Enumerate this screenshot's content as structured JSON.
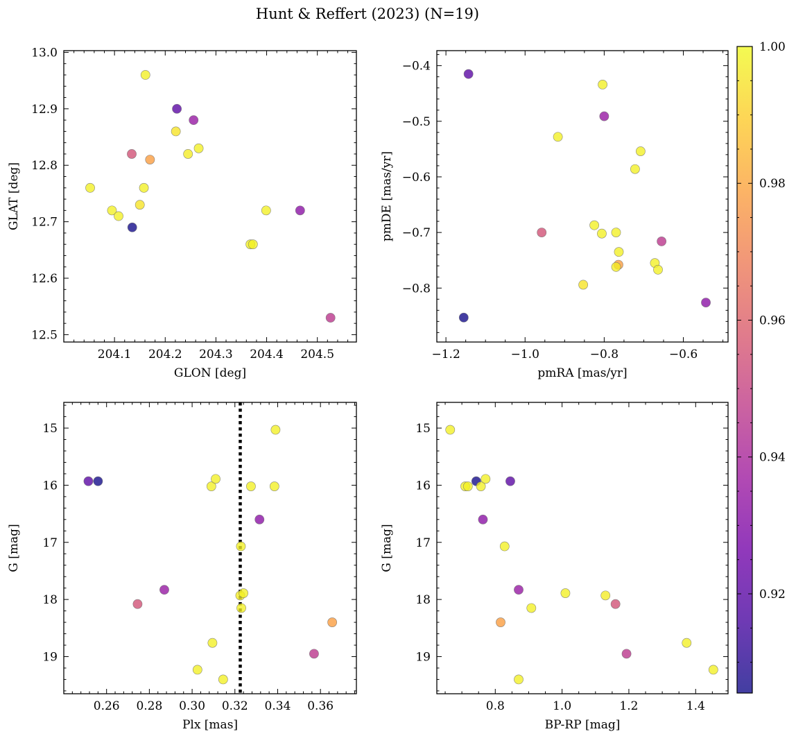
{
  "figure": {
    "title": "Hunt & Reffert (2023) (N=19)"
  },
  "chart_data": [
    {
      "type": "scatter",
      "xlabel": "GLON [deg]",
      "ylabel": "GLAT [deg]",
      "xlim": [
        204.0,
        204.577
      ],
      "ylim": [
        12.487,
        13.003
      ],
      "x_inverted": false,
      "y_inverted": false,
      "xticks": [
        204.1,
        204.2,
        204.3,
        204.4,
        204.5
      ],
      "xtick_labels": [
        "204.1",
        "204.2",
        "204.3",
        "204.4",
        "204.5"
      ],
      "yticks": [
        12.5,
        12.6,
        12.7,
        12.8,
        12.9,
        13.0
      ],
      "ytick_labels": [
        "12.5",
        "12.6",
        "12.7",
        "12.8",
        "12.9",
        "13.0"
      ],
      "points": [
        {
          "x": 204.052,
          "y": 12.76,
          "c": 0.998
        },
        {
          "x": 204.095,
          "y": 12.72,
          "c": 0.998
        },
        {
          "x": 204.108,
          "y": 12.71,
          "c": 0.998
        },
        {
          "x": 204.135,
          "y": 12.69,
          "c": 0.906
        },
        {
          "x": 204.134,
          "y": 12.82,
          "c": 0.955
        },
        {
          "x": 204.15,
          "y": 12.73,
          "c": 0.995
        },
        {
          "x": 204.158,
          "y": 12.76,
          "c": 0.998
        },
        {
          "x": 204.161,
          "y": 12.96,
          "c": 0.998
        },
        {
          "x": 204.17,
          "y": 12.81,
          "c": 0.978
        },
        {
          "x": 204.221,
          "y": 12.86,
          "c": 0.995
        },
        {
          "x": 204.223,
          "y": 12.9,
          "c": 0.92
        },
        {
          "x": 204.245,
          "y": 12.82,
          "c": 0.997
        },
        {
          "x": 204.256,
          "y": 12.88,
          "c": 0.935
        },
        {
          "x": 204.266,
          "y": 12.83,
          "c": 0.998
        },
        {
          "x": 204.368,
          "y": 12.66,
          "c": 0.998
        },
        {
          "x": 204.373,
          "y": 12.66,
          "c": 0.998
        },
        {
          "x": 204.399,
          "y": 12.72,
          "c": 0.998
        },
        {
          "x": 204.466,
          "y": 12.72,
          "c": 0.932
        },
        {
          "x": 204.526,
          "y": 12.53,
          "c": 0.946
        }
      ]
    },
    {
      "type": "scatter",
      "xlabel": "pmRA [mas/yr]",
      "ylabel": "pmDE [mas/yr]",
      "xlim": [
        -1.223,
        -0.487
      ],
      "ylim": [
        -0.897,
        -0.373
      ],
      "x_inverted": false,
      "y_inverted": false,
      "xticks": [
        -1.2,
        -1.0,
        -0.8,
        -0.6
      ],
      "xtick_labels": [
        "−1.2",
        "−1.0",
        "−0.8",
        "−0.6"
      ],
      "yticks": [
        -0.8,
        -0.7,
        -0.6,
        -0.5,
        -0.4
      ],
      "ytick_labels": [
        "−0.8",
        "−0.7",
        "−0.6",
        "−0.5",
        "−0.4"
      ],
      "points": [
        {
          "x": -1.155,
          "y": -0.853,
          "c": 0.906
        },
        {
          "x": -1.143,
          "y": -0.415,
          "c": 0.92
        },
        {
          "x": -0.958,
          "y": -0.7,
          "c": 0.955
        },
        {
          "x": -0.917,
          "y": -0.528,
          "c": 0.998
        },
        {
          "x": -0.853,
          "y": -0.794,
          "c": 0.995
        },
        {
          "x": -0.825,
          "y": -0.687,
          "c": 0.998
        },
        {
          "x": -0.806,
          "y": -0.702,
          "c": 0.998
        },
        {
          "x": -0.804,
          "y": -0.434,
          "c": 0.998
        },
        {
          "x": -0.8,
          "y": -0.491,
          "c": 0.935
        },
        {
          "x": -0.77,
          "y": -0.7,
          "c": 0.998
        },
        {
          "x": -0.77,
          "y": -0.762,
          "c": 0.997
        },
        {
          "x": -0.764,
          "y": -0.758,
          "c": 0.978
        },
        {
          "x": -0.763,
          "y": -0.735,
          "c": 0.998
        },
        {
          "x": -0.722,
          "y": -0.586,
          "c": 0.998
        },
        {
          "x": -0.708,
          "y": -0.554,
          "c": 0.998
        },
        {
          "x": -0.672,
          "y": -0.755,
          "c": 0.998
        },
        {
          "x": -0.664,
          "y": -0.767,
          "c": 0.998
        },
        {
          "x": -0.655,
          "y": -0.716,
          "c": 0.946
        },
        {
          "x": -0.543,
          "y": -0.826,
          "c": 0.932
        }
      ]
    },
    {
      "type": "scatter",
      "xlabel": "Plx [mas]",
      "ylabel": "G [mag]",
      "xlim": [
        0.24,
        0.3768
      ],
      "ylim": [
        19.65,
        14.55
      ],
      "x_inverted": false,
      "y_inverted": true,
      "xticks": [
        0.26,
        0.28,
        0.3,
        0.32,
        0.34,
        0.36
      ],
      "xtick_labels": [
        "0.26",
        "0.28",
        "0.30",
        "0.32",
        "0.34",
        "0.36"
      ],
      "yticks": [
        15,
        16,
        17,
        18,
        19
      ],
      "ytick_labels": [
        "15",
        "16",
        "17",
        "18",
        "19"
      ],
      "vline": {
        "x": 0.3225,
        "style": "dotted",
        "color": "#000000"
      },
      "points": [
        {
          "x": 0.2515,
          "y": 15.93,
          "c": 0.92
        },
        {
          "x": 0.256,
          "y": 15.93,
          "c": 0.906
        },
        {
          "x": 0.2745,
          "y": 18.08,
          "c": 0.955
        },
        {
          "x": 0.287,
          "y": 17.83,
          "c": 0.935
        },
        {
          "x": 0.3025,
          "y": 19.23,
          "c": 0.998
        },
        {
          "x": 0.309,
          "y": 16.02,
          "c": 0.998
        },
        {
          "x": 0.3095,
          "y": 18.76,
          "c": 0.998
        },
        {
          "x": 0.311,
          "y": 15.89,
          "c": 0.998
        },
        {
          "x": 0.3145,
          "y": 19.4,
          "c": 0.998
        },
        {
          "x": 0.3225,
          "y": 17.93,
          "c": 0.997
        },
        {
          "x": 0.3228,
          "y": 17.07,
          "c": 0.998
        },
        {
          "x": 0.323,
          "y": 18.15,
          "c": 0.998
        },
        {
          "x": 0.324,
          "y": 17.89,
          "c": 0.998
        },
        {
          "x": 0.3275,
          "y": 16.02,
          "c": 0.998
        },
        {
          "x": 0.3315,
          "y": 16.6,
          "c": 0.932
        },
        {
          "x": 0.3385,
          "y": 16.02,
          "c": 0.998
        },
        {
          "x": 0.339,
          "y": 15.03,
          "c": 0.998
        },
        {
          "x": 0.357,
          "y": 18.95,
          "c": 0.946
        },
        {
          "x": 0.3655,
          "y": 18.4,
          "c": 0.978
        }
      ]
    },
    {
      "type": "scatter",
      "xlabel": "BP-RP [mag]",
      "ylabel": "G [mag]",
      "xlim": [
        0.625,
        1.497
      ],
      "ylim": [
        19.65,
        14.55
      ],
      "x_inverted": false,
      "y_inverted": true,
      "xticks": [
        0.8,
        1.0,
        1.2,
        1.4
      ],
      "xtick_labels": [
        "0.8",
        "1.0",
        "1.2",
        "1.4"
      ],
      "yticks": [
        15,
        16,
        17,
        18,
        19
      ],
      "ytick_labels": [
        "15",
        "16",
        "17",
        "18",
        "19"
      ],
      "points": [
        {
          "x": 0.665,
          "y": 15.03,
          "c": 0.998
        },
        {
          "x": 0.71,
          "y": 16.02,
          "c": 0.998
        },
        {
          "x": 0.718,
          "y": 16.02,
          "c": 0.998
        },
        {
          "x": 0.743,
          "y": 15.93,
          "c": 0.906
        },
        {
          "x": 0.757,
          "y": 16.02,
          "c": 0.998
        },
        {
          "x": 0.763,
          "y": 16.6,
          "c": 0.932
        },
        {
          "x": 0.771,
          "y": 15.89,
          "c": 0.998
        },
        {
          "x": 0.816,
          "y": 18.4,
          "c": 0.978
        },
        {
          "x": 0.828,
          "y": 17.07,
          "c": 0.998
        },
        {
          "x": 0.845,
          "y": 15.93,
          "c": 0.92
        },
        {
          "x": 0.87,
          "y": 17.83,
          "c": 0.935
        },
        {
          "x": 0.87,
          "y": 19.4,
          "c": 0.998
        },
        {
          "x": 0.908,
          "y": 18.15,
          "c": 0.998
        },
        {
          "x": 1.01,
          "y": 17.89,
          "c": 0.998
        },
        {
          "x": 1.13,
          "y": 17.93,
          "c": 0.997
        },
        {
          "x": 1.16,
          "y": 18.08,
          "c": 0.955
        },
        {
          "x": 1.193,
          "y": 18.95,
          "c": 0.946
        },
        {
          "x": 1.373,
          "y": 18.76,
          "c": 0.998
        },
        {
          "x": 1.453,
          "y": 19.23,
          "c": 0.998
        }
      ]
    }
  ],
  "colorbar": {
    "colormap": "plasma",
    "vmin": 0.9055,
    "vmax": 1.0,
    "ticks": [
      0.92,
      0.94,
      0.96,
      0.98,
      1.0
    ],
    "tick_labels": [
      "0.92",
      "0.94",
      "0.96",
      "0.98",
      "1.00"
    ],
    "label": "",
    "stops": [
      "#0d0887",
      "#46039f",
      "#7201a8",
      "#9c179e",
      "#bd3786",
      "#d8576b",
      "#ed7953",
      "#fb9f3a",
      "#fdca26",
      "#f0f921"
    ]
  },
  "style": {
    "marker_alpha": 0.78,
    "marker_edge_color": "#6b6b6b"
  }
}
